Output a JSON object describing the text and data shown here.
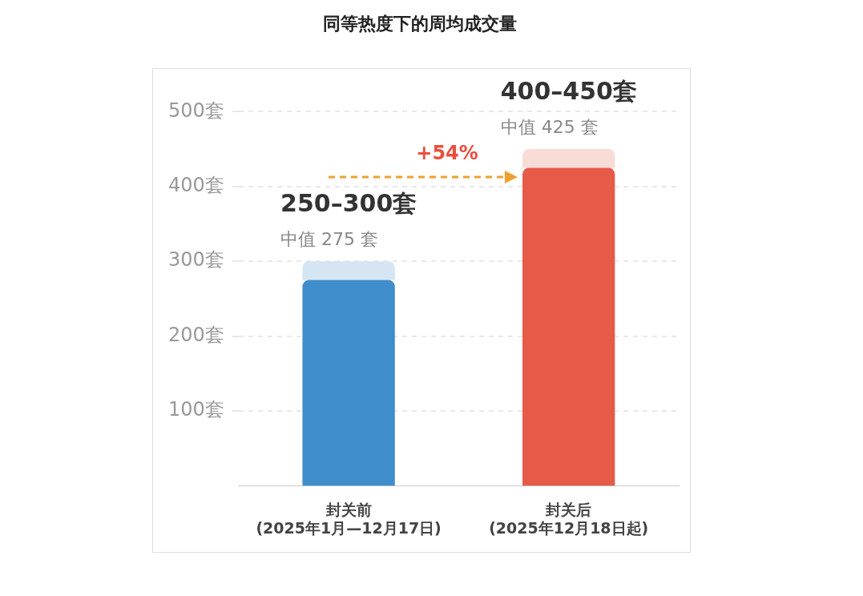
{
  "chart_data": {
    "type": "bar",
    "title": "同等热度下的周均成交量",
    "categories": [
      "封关前\n(2025年1月—12月17日)",
      "封关后\n(2025年12月18日起)"
    ],
    "stacked": true,
    "series": [
      {
        "colors": [
          "#3f8dcb",
          "#e65a48"
        ],
        "values": [
          275,
          425
        ],
        "value_labels": [
          "中值 275 套",
          "中值 425 套"
        ]
      },
      {
        "colors": [
          "#d5e5f2",
          "#f8dcd6"
        ],
        "values": [
          25,
          25
        ],
        "value_labels": [
          "250–300套",
          "400–450套"
        ]
      }
    ],
    "ylim": [
      0,
      500
    ],
    "yticks": [
      {
        "value": 100,
        "label": "100套"
      },
      {
        "value": 200,
        "label": "200套"
      },
      {
        "value": 300,
        "label": "300套"
      },
      {
        "value": 400,
        "label": "400套"
      },
      {
        "value": 500,
        "label": "500套"
      }
    ],
    "grid": "y",
    "line_style": "dashed",
    "annotations": [
      "+54%"
    ]
  }
}
